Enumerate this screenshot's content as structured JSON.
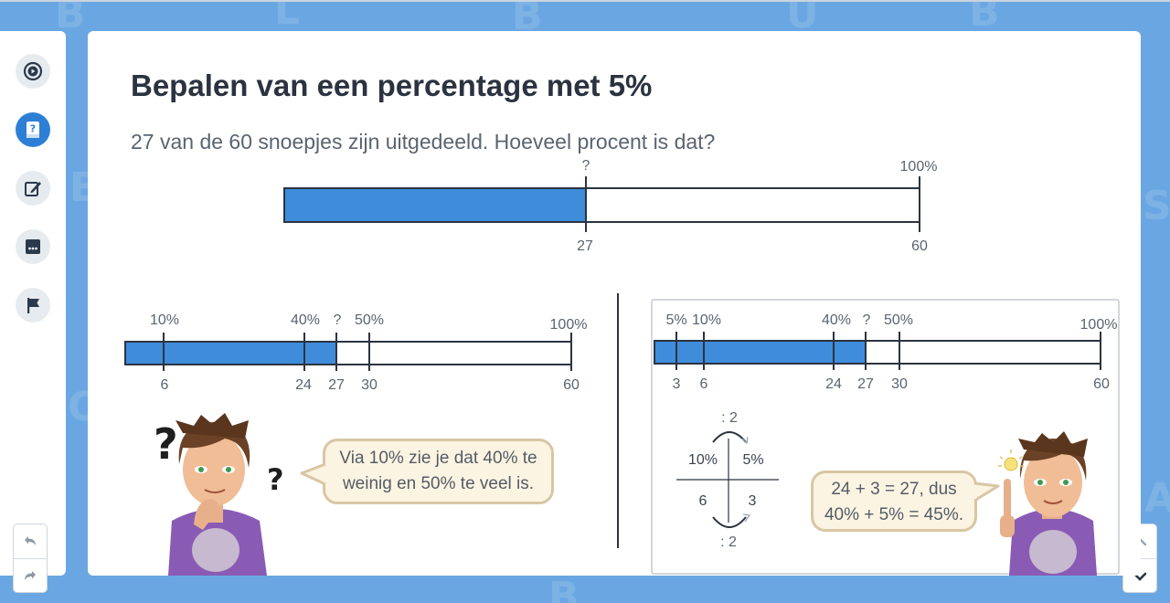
{
  "title": "Bepalen van een percentage met 5%",
  "question": "27 van de 60 snoepjes zijn uitgedeeld. Hoeveel procent is dat?",
  "colors": {
    "bar_fill": "#3f8cdb",
    "bar_stroke": "#2b3340",
    "accent": "#2d7fd6",
    "background": "#6aa7e2"
  },
  "sidebar": {
    "items": [
      {
        "icon": "play-circle-icon",
        "active": false
      },
      {
        "icon": "book-question-icon",
        "active": true
      },
      {
        "icon": "edit-icon",
        "active": false
      },
      {
        "icon": "chat-dots-icon",
        "active": false
      },
      {
        "icon": "flag-icon",
        "active": false
      }
    ]
  },
  "top_bar": {
    "question_mark": "?",
    "top_right": "100%",
    "bottom_mid": "27",
    "bottom_right": "60",
    "fill_fraction": 0.45
  },
  "left_bar": {
    "top_labels": [
      "10%",
      "40%",
      "?",
      "50%",
      "100%"
    ],
    "bottom_labels": [
      "6",
      "24",
      "27",
      "30",
      "60"
    ],
    "fill_fraction": 0.45
  },
  "right_bar": {
    "top_labels": [
      "5%",
      "10%",
      "40%",
      "?",
      "50%",
      "100%"
    ],
    "bottom_labels": [
      "3",
      "6",
      "24",
      "27",
      "30",
      "60"
    ],
    "fill_fraction": 0.45
  },
  "ratio": {
    "top_op": ": 2",
    "bottom_op": ": 2",
    "cells": [
      "10%",
      "5%",
      "6",
      "3"
    ]
  },
  "left_speech": [
    "Via 10% zie je dat 40% te",
    "weinig en 50% te veel is."
  ],
  "right_speech": [
    "24 + 3 = 27, dus",
    "40% + 5% = 45%."
  ],
  "bg_letters": [
    "B",
    "L",
    "B",
    "U",
    "B",
    "S",
    "B",
    "A",
    "O",
    "B"
  ]
}
